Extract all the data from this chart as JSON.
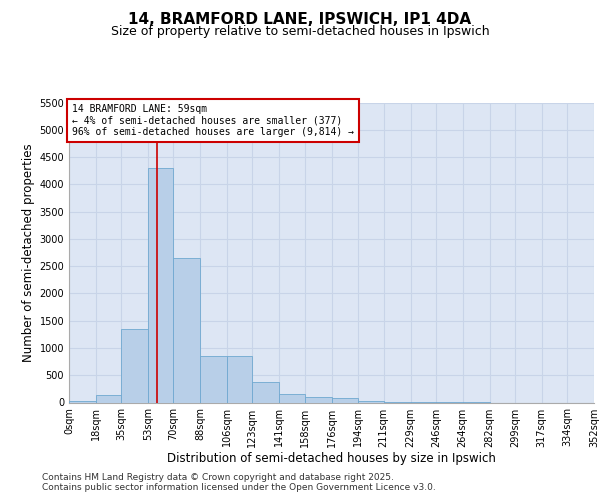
{
  "title": "14, BRAMFORD LANE, IPSWICH, IP1 4DA",
  "subtitle": "Size of property relative to semi-detached houses in Ipswich",
  "xlabel": "Distribution of semi-detached houses by size in Ipswich",
  "ylabel": "Number of semi-detached properties",
  "annotation_title": "14 BRAMFORD LANE: 59sqm",
  "annotation_line1": "← 4% of semi-detached houses are smaller (377)",
  "annotation_line2": "96% of semi-detached houses are larger (9,814) →",
  "property_size": 59,
  "bar_left_edges": [
    0,
    18,
    35,
    53,
    70,
    88,
    106,
    123,
    141,
    158,
    176,
    194,
    211,
    229,
    246,
    264,
    282,
    299,
    317,
    334
  ],
  "bar_widths": [
    18,
    17,
    18,
    17,
    18,
    18,
    17,
    18,
    17,
    18,
    18,
    17,
    18,
    17,
    18,
    18,
    17,
    18,
    17,
    18
  ],
  "bar_heights": [
    20,
    130,
    1350,
    4300,
    2650,
    850,
    850,
    380,
    150,
    100,
    75,
    25,
    8,
    4,
    2,
    1,
    0,
    0,
    0,
    0
  ],
  "tick_labels": [
    "0sqm",
    "18sqm",
    "35sqm",
    "53sqm",
    "70sqm",
    "88sqm",
    "106sqm",
    "123sqm",
    "141sqm",
    "158sqm",
    "176sqm",
    "194sqm",
    "211sqm",
    "229sqm",
    "246sqm",
    "264sqm",
    "282sqm",
    "299sqm",
    "317sqm",
    "334sqm",
    "352sqm"
  ],
  "tick_positions": [
    0,
    18,
    35,
    53,
    70,
    88,
    106,
    123,
    141,
    158,
    176,
    194,
    211,
    229,
    246,
    264,
    282,
    299,
    317,
    334,
    352
  ],
  "ylim": [
    0,
    5500
  ],
  "yticks": [
    0,
    500,
    1000,
    1500,
    2000,
    2500,
    3000,
    3500,
    4000,
    4500,
    5000,
    5500
  ],
  "bar_color": "#b8cfe8",
  "bar_edge_color": "#6fa8d0",
  "grid_color": "#c8d4e8",
  "background_color": "#dde6f4",
  "vline_color": "#cc0000",
  "annotation_box_color": "#cc0000",
  "footer_line1": "Contains HM Land Registry data © Crown copyright and database right 2025.",
  "footer_line2": "Contains public sector information licensed under the Open Government Licence v3.0.",
  "title_fontsize": 11,
  "subtitle_fontsize": 9,
  "axis_label_fontsize": 8.5,
  "tick_fontsize": 7,
  "annotation_fontsize": 7,
  "footer_fontsize": 6.5
}
